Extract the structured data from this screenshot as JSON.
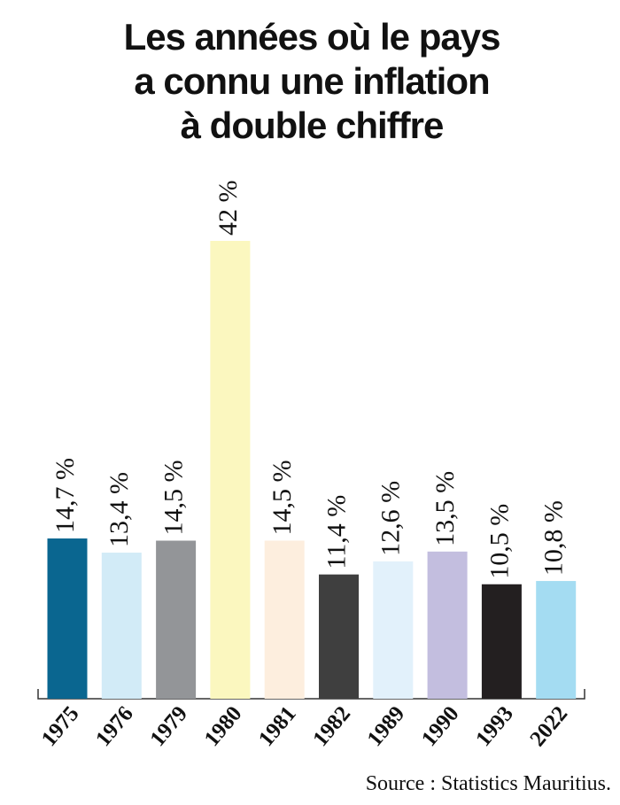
{
  "chart_data": {
    "type": "bar",
    "title": [
      "Les années où le pays",
      "a connu une inflation",
      "à double chiffre"
    ],
    "categories": [
      "1975",
      "1976",
      "1979",
      "1980",
      "1981",
      "1982",
      "1989",
      "1990",
      "1993",
      "2022"
    ],
    "values": [
      14.7,
      13.4,
      14.5,
      42,
      14.5,
      11.4,
      12.6,
      13.5,
      10.5,
      10.8
    ],
    "value_labels": [
      "14,7 %",
      "13,4 %",
      "14,5 %",
      "42 %",
      "14,5 %",
      "11,4 %",
      "12,6 %",
      "13,5 %",
      "10,5 %",
      "10,8 %"
    ],
    "colors": [
      "#0a6690",
      "#d2ebf7",
      "#939598",
      "#fbf7bf",
      "#fdeede",
      "#3f3f3f",
      "#e2f1fb",
      "#c3bedf",
      "#231f20",
      "#a4dcf2"
    ],
    "source": "Source : Statistics Mauritius."
  }
}
